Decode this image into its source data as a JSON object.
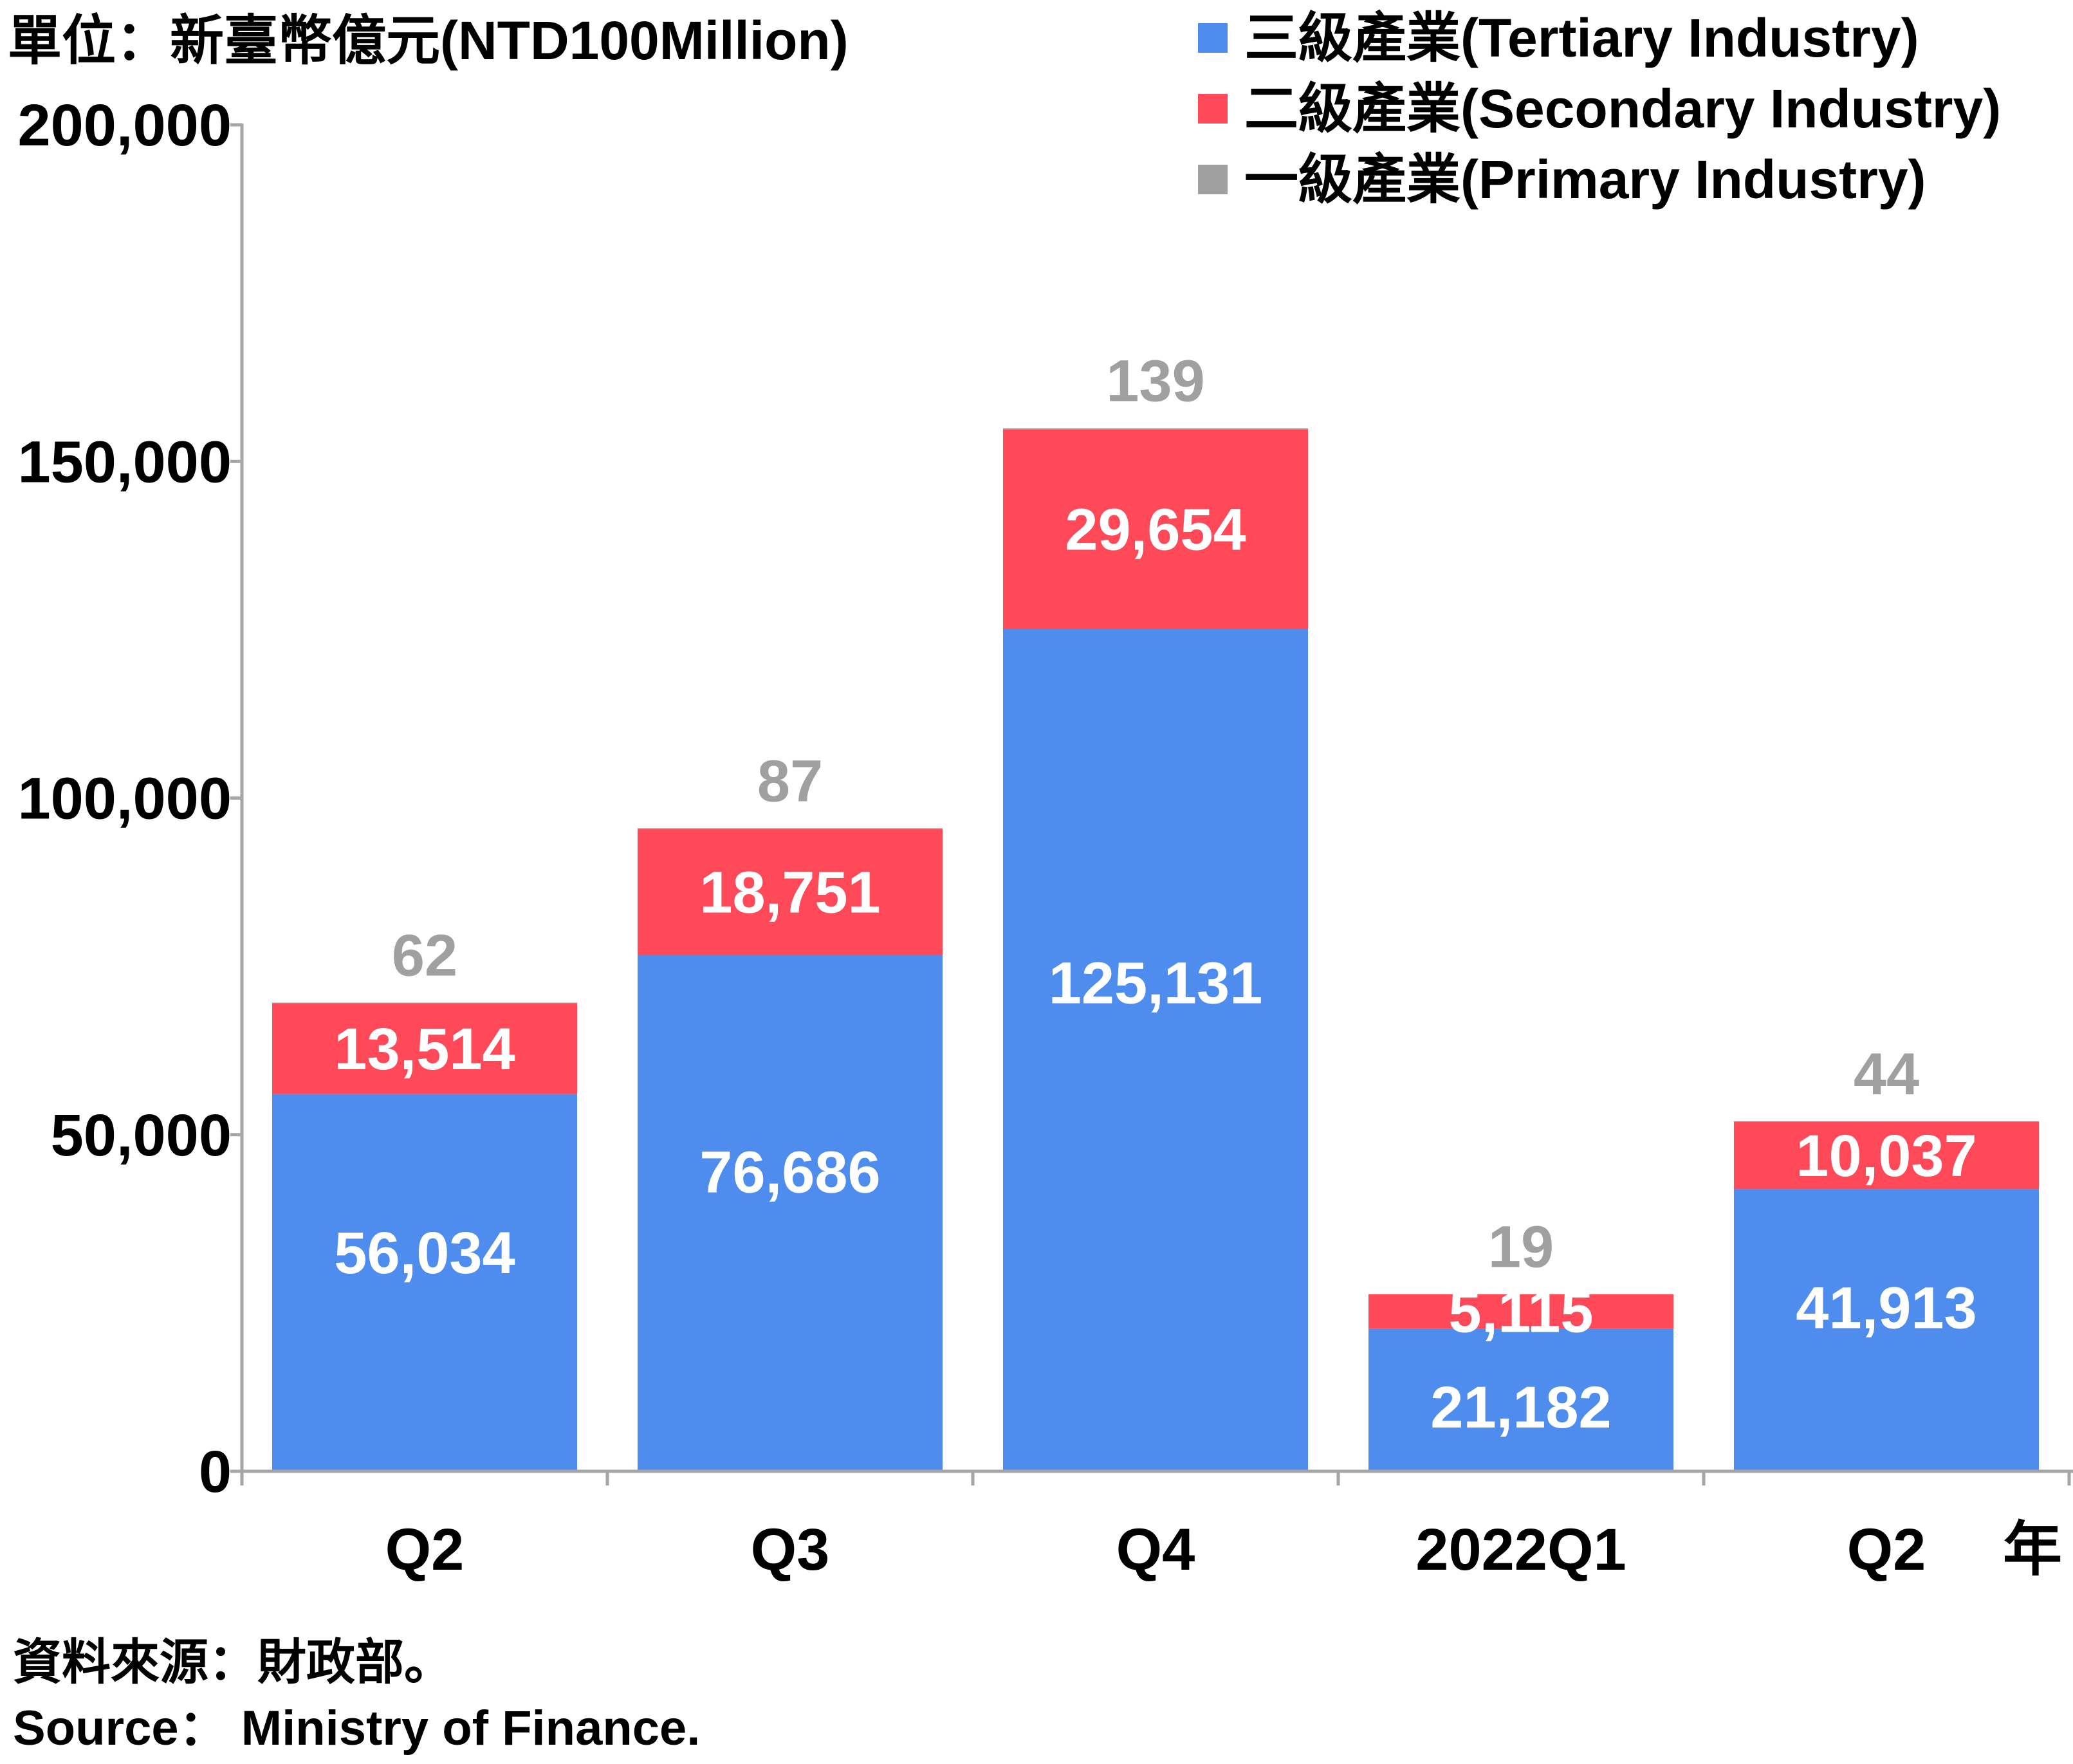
{
  "unit_label": "單位：新臺幣億元(NTD100Million)",
  "x_suffix": "年",
  "source_zh": "資料來源：財政部。",
  "source_en": "Source： Ministry of Finance.",
  "colors": {
    "tertiary": "#4e8ced",
    "secondary": "#ff4858",
    "primary": "#a0a0a0",
    "axis": "#a6a6a6"
  },
  "chart_data": {
    "type": "bar",
    "stacked": true,
    "categories": [
      "Q2",
      "Q3",
      "Q4",
      "2022Q1",
      "Q2"
    ],
    "ylim": [
      0,
      200000
    ],
    "yticks": [
      0,
      50000,
      100000,
      150000,
      200000
    ],
    "ytick_labels": [
      "0",
      "50,000",
      "100,000",
      "150,000",
      "200,000"
    ],
    "legend_position": "top-right",
    "series": [
      {
        "name": "三級產業(Tertiary Industry)",
        "key": "tertiary",
        "values": [
          56034,
          76686,
          125131,
          21182,
          41913
        ],
        "labels": [
          "56,034",
          "76,686",
          "125,131",
          "21,182",
          "41,913"
        ]
      },
      {
        "name": "二級產業(Secondary Industry)",
        "key": "secondary",
        "values": [
          13514,
          18751,
          29654,
          5115,
          10037
        ],
        "labels": [
          "13,514",
          "18,751",
          "29,654",
          "5,115",
          "10,037"
        ]
      },
      {
        "name": "一級產業(Primary Industry)",
        "key": "primary",
        "values": [
          62,
          87,
          139,
          19,
          44
        ],
        "labels": [
          "62",
          "87",
          "139",
          "19",
          "44"
        ]
      }
    ]
  }
}
